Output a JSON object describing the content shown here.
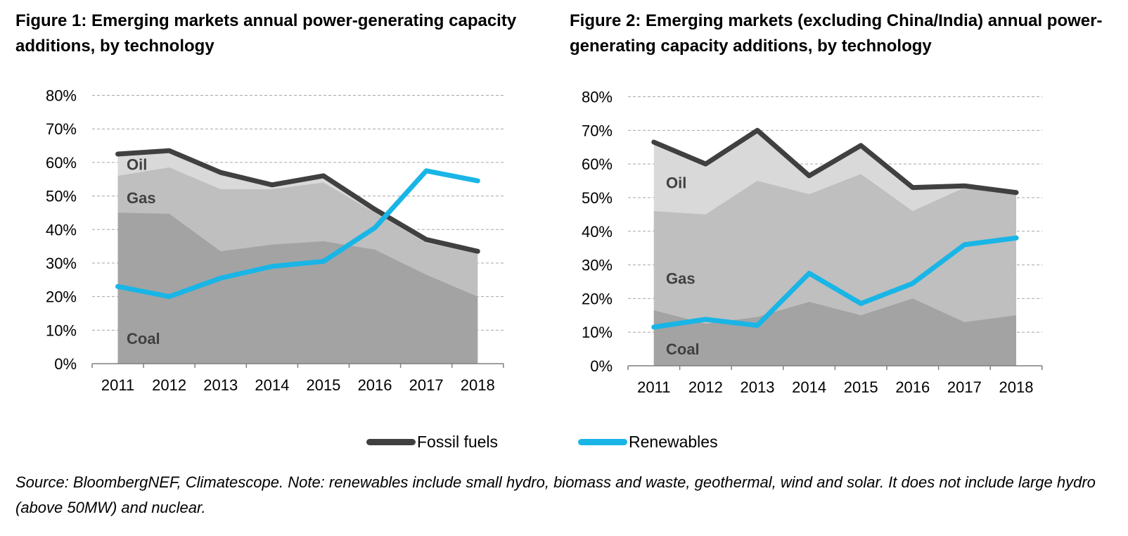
{
  "colors": {
    "coal": "#a3a3a3",
    "gas": "#bfbfbf",
    "oil": "#d9d9d9",
    "fossil": "#404040",
    "renewables": "#19b5e6",
    "grid": "#a6a6a6",
    "axis": "#7f7f7f"
  },
  "legend": {
    "fossil": "Fossil fuels",
    "renewables": "Renewables"
  },
  "source": "Source: BloombergNEF, Climatescope. Note: renewables include small hydro, biomass and waste, geothermal, wind and solar. It does not include large hydro (above 50MW) and nuclear.",
  "chart_data": [
    {
      "type": "area",
      "title": "Figure 1: Emerging markets annual power-generating capacity additions, by technology",
      "categories": [
        "2011",
        "2012",
        "2013",
        "2014",
        "2015",
        "2016",
        "2017",
        "2018"
      ],
      "y_ticks": [
        "0%",
        "10%",
        "20%",
        "30%",
        "40%",
        "50%",
        "60%",
        "70%",
        "80%"
      ],
      "ylim": [
        0,
        80
      ],
      "grid": true,
      "area_labels": {
        "oil": "Oil",
        "gas": "Gas",
        "coal": "Coal"
      },
      "stacked_areas": {
        "coal": [
          45,
          44.7,
          33.5,
          35.5,
          36.5,
          34,
          26.5,
          20
        ],
        "gas_top": [
          56,
          58.5,
          52,
          52,
          54,
          45,
          36,
          33
        ],
        "oil_top": [
          62.5,
          63.5,
          57,
          53.3,
          56,
          46,
          37,
          33.5
        ]
      },
      "series": [
        {
          "name": "Fossil fuels",
          "values": [
            62.5,
            63.5,
            57,
            53.3,
            56,
            46,
            37,
            33.5
          ]
        },
        {
          "name": "Renewables",
          "values": [
            23,
            20,
            25.5,
            29,
            30.5,
            40.5,
            57.5,
            54.5
          ]
        }
      ]
    },
    {
      "type": "area",
      "title": "Figure 2: Emerging markets (excluding China/India) annual power-generating capacity additions, by technology",
      "categories": [
        "2011",
        "2012",
        "2013",
        "2014",
        "2015",
        "2016",
        "2017",
        "2018"
      ],
      "y_ticks": [
        "0%",
        "10%",
        "20%",
        "30%",
        "40%",
        "50%",
        "60%",
        "70%",
        "80%"
      ],
      "ylim": [
        0,
        80
      ],
      "grid": true,
      "area_labels": {
        "oil": "Oil",
        "gas": "Gas",
        "coal": "Coal"
      },
      "stacked_areas": {
        "coal": [
          16.5,
          12.5,
          14.5,
          19,
          15,
          20,
          13,
          15
        ],
        "gas_top": [
          46,
          45,
          55,
          51,
          57,
          46,
          53,
          51
        ],
        "oil_top": [
          66.5,
          60,
          70,
          56.5,
          65.5,
          53,
          53.5,
          51.5
        ]
      },
      "series": [
        {
          "name": "Fossil fuels",
          "values": [
            66.5,
            60,
            70,
            56.5,
            65.5,
            53,
            53.5,
            51.5
          ]
        },
        {
          "name": "Renewables",
          "values": [
            11.5,
            13.8,
            12,
            27.5,
            18.5,
            24.5,
            36,
            38
          ]
        }
      ]
    }
  ]
}
